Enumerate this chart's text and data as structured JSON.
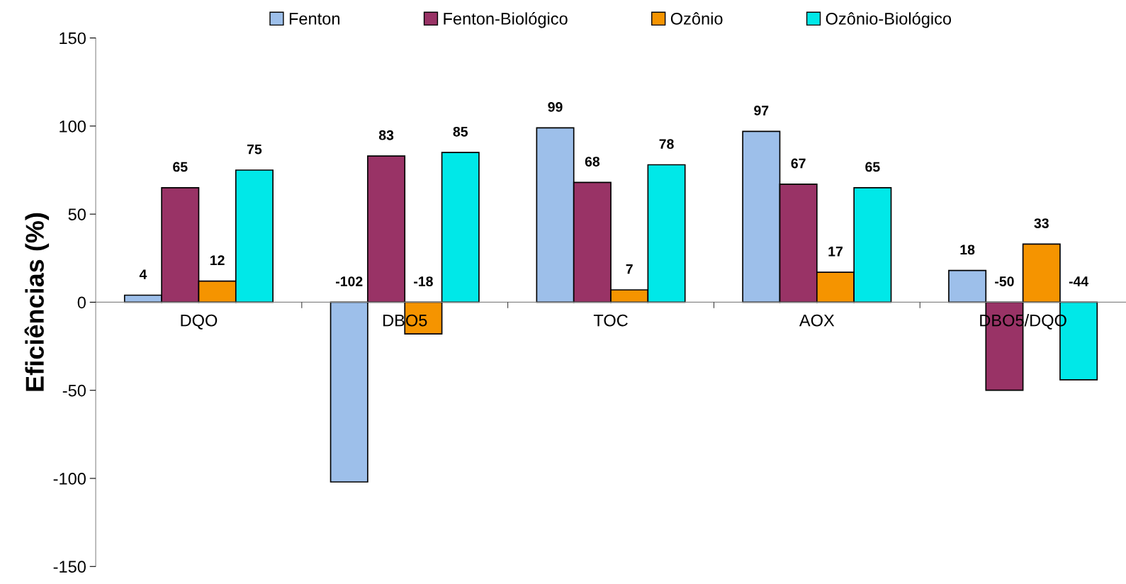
{
  "chart_data": {
    "type": "bar",
    "ylabel": "Eficiências (%)",
    "categories": [
      "DQO",
      "DBO5",
      "TOC",
      "AOX",
      "DBO5/DQO"
    ],
    "series": [
      {
        "name": "Fenton",
        "color": "#9dbfea",
        "values": [
          4,
          -102,
          99,
          97,
          18
        ]
      },
      {
        "name": "Fenton-Biológico",
        "color": "#993366",
        "values": [
          65,
          83,
          68,
          67,
          -50
        ]
      },
      {
        "name": "Ozônio",
        "color": "#f59400",
        "values": [
          12,
          -18,
          7,
          17,
          33
        ]
      },
      {
        "name": "Ozônio-Biológico",
        "color": "#00e8e8",
        "values": [
          75,
          85,
          78,
          65,
          -44
        ]
      }
    ],
    "ylim": [
      -150,
      150
    ],
    "yticks": [
      -150,
      -100,
      -50,
      0,
      50,
      100,
      150
    ],
    "data_labels": true,
    "legend": "top",
    "grid": false
  }
}
